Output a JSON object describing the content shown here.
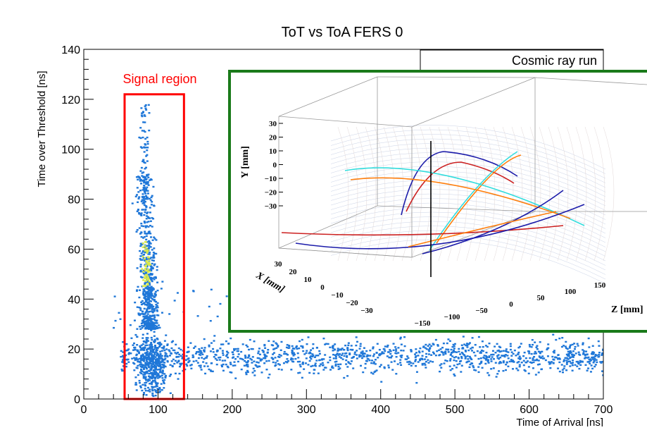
{
  "chart_data": [
    {
      "type": "scatter",
      "title": "ToT vs ToA FERS 0",
      "xlabel": "Time of Arrival [ns]",
      "ylabel": "Time over Threshold [ns]",
      "xlim": [
        0,
        700
      ],
      "ylim": [
        0,
        140
      ],
      "x_ticks": [
        "0",
        "100",
        "200",
        "300",
        "400",
        "500",
        "600",
        "700"
      ],
      "y_ticks": [
        "0",
        "20",
        "40",
        "60",
        "80",
        "100",
        "120",
        "140"
      ],
      "grid": false,
      "annotations": {
        "signal_region_label": "Signal region",
        "signal_region_x": [
          55,
          135
        ],
        "signal_region_y": [
          0,
          122
        ],
        "inset_label": "Cosmic ray run"
      },
      "note": "2D histogram of hits; signal cluster near ToA 70-105 ns reaching ToT ~117 ns, dense core at ToT 40-65 ns; flat background band ToT 8-25 ns across ToA 50-700 ns",
      "colors": {
        "points": "#1f77d8",
        "hot": "#d8e84a",
        "signal_box": "#ff0000",
        "inset_border": "#1a7a1a"
      }
    },
    {
      "type": "line",
      "title": "",
      "ylabel": "Y [mm]",
      "xlabel": "X [mm]",
      "zlabel": "Z [mm]",
      "y_ticks": [
        "30",
        "20",
        "10",
        "0",
        "−10",
        "−20",
        "−30"
      ],
      "x_ticks": [
        "30",
        "20",
        "10",
        "0",
        "−10",
        "−20",
        "−30"
      ],
      "z_ticks": [
        "−150",
        "−100",
        "−50",
        "0",
        "50",
        "100",
        "150"
      ],
      "series_colors": [
        "#1c1caa",
        "#cc2020",
        "#ff7f0e",
        "#33dddd"
      ],
      "note": "3D view of reconstructed cosmic ray tracks inside a cylindrical detector with a vertical reference line"
    }
  ]
}
